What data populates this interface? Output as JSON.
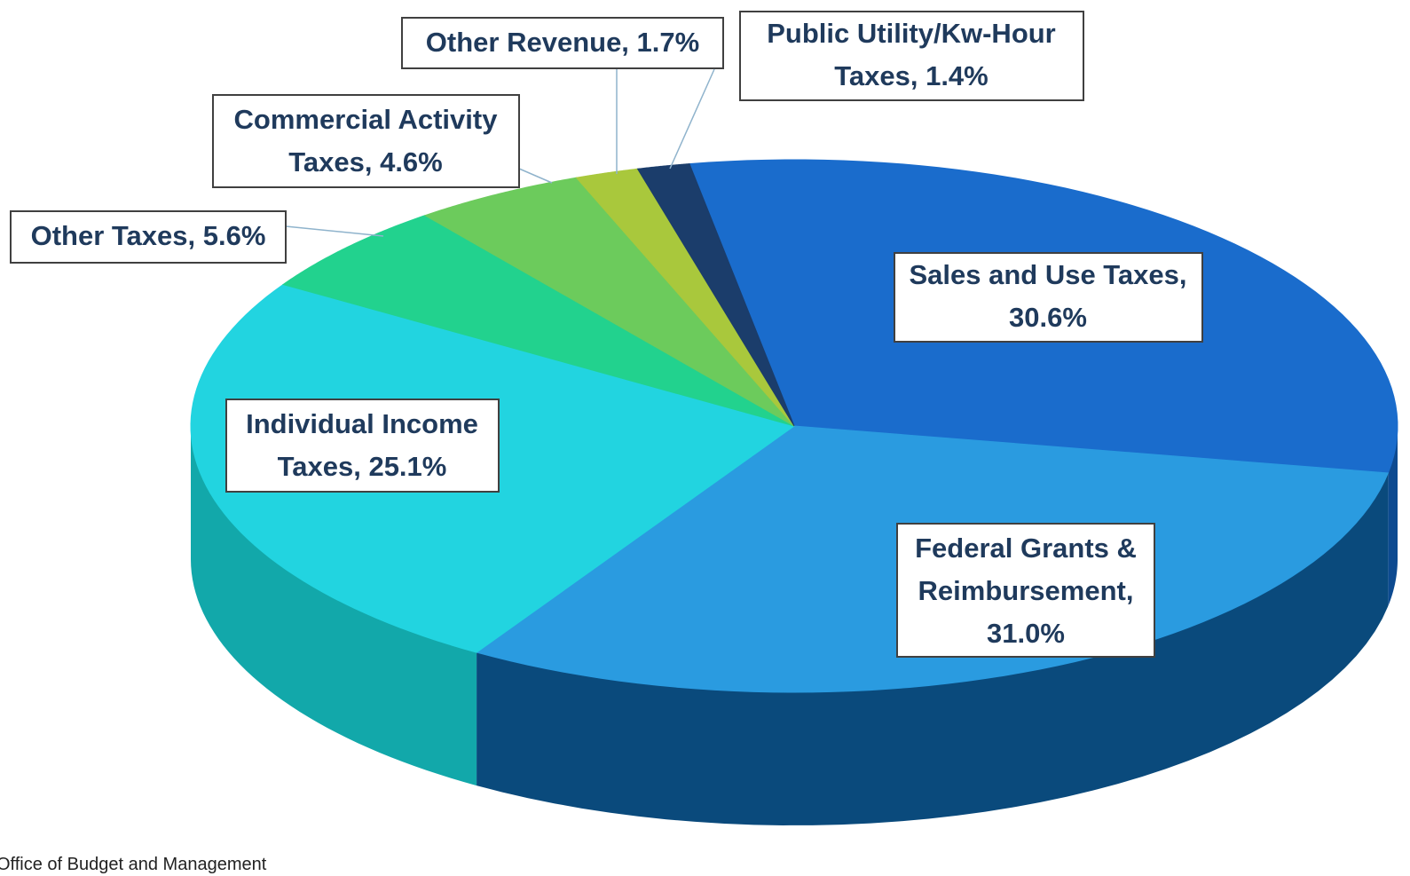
{
  "chart_data": {
    "type": "pie",
    "values": [
      30.6,
      31.0,
      25.1,
      5.6,
      4.6,
      1.7,
      1.4
    ],
    "value_labels": [
      [
        "Sales and Use  Taxes,",
        "30.6%"
      ],
      [
        "Federal Grants &",
        "Reimbursement,",
        "31.0%"
      ],
      [
        "Individual Income",
        "Taxes, 25.1%"
      ],
      [
        "Other Taxes, 5.6%"
      ],
      [
        "Commercial Activity",
        "Taxes, 4.6%"
      ],
      [
        "Other Revenue, 1.7%"
      ],
      [
        "Public Utility/Kw-Hour",
        "Taxes, 1.4%"
      ]
    ],
    "colors": [
      "#1a6ccc",
      "#2a9be0",
      "#22d4e0",
      "#22d28e",
      "#6ccb5c",
      "#a9c83c",
      "#1b3d6b"
    ],
    "side_colors": [
      "#0d4a90",
      "#0a4a7c",
      "#12a8aa",
      "#14a070",
      "#4ea040",
      "#80a020",
      "#0f2648"
    ],
    "source": "Office of Budget and Management"
  }
}
